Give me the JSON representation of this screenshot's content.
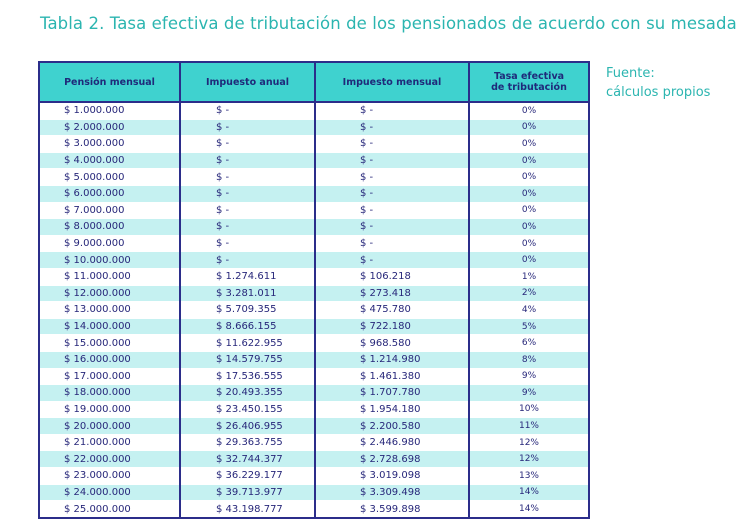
{
  "title": "Tabla 2. Tasa efectiva de tributación de los pensionados de acuerdo con su mesada",
  "source": [
    "Fuente:",
    "cálculos propios"
  ],
  "headers": {
    "pension": "Pensión mensual",
    "anual": "Impuesto anual",
    "mensual": "Impuesto mensual",
    "tasa_line1": "Tasa efectiva",
    "tasa_line2": "de tributación"
  },
  "rows": [
    {
      "pension": "$ 1.000.000",
      "anual": "$ -",
      "mensual": "$ -",
      "tasa": "0%"
    },
    {
      "pension": "$ 2.000.000",
      "anual": "$ -",
      "mensual": "$ -",
      "tasa": "0%"
    },
    {
      "pension": "$ 3.000.000",
      "anual": "$ -",
      "mensual": "$ -",
      "tasa": "0%"
    },
    {
      "pension": "$ 4.000.000",
      "anual": "$ -",
      "mensual": "$ -",
      "tasa": "0%"
    },
    {
      "pension": "$ 5.000.000",
      "anual": "$ -",
      "mensual": "$ -",
      "tasa": "0%"
    },
    {
      "pension": "$ 6.000.000",
      "anual": "$ -",
      "mensual": "$ -",
      "tasa": "0%"
    },
    {
      "pension": "$ 7.000.000",
      "anual": "$ -",
      "mensual": "$ -",
      "tasa": "0%"
    },
    {
      "pension": "$ 8.000.000",
      "anual": "$ -",
      "mensual": "$ -",
      "tasa": "0%"
    },
    {
      "pension": "$ 9.000.000",
      "anual": "$ -",
      "mensual": "$ -",
      "tasa": "0%"
    },
    {
      "pension": "$ 10.000.000",
      "anual": "$ -",
      "mensual": "$ -",
      "tasa": "0%"
    },
    {
      "pension": "$ 11.000.000",
      "anual": "$ 1.274.611",
      "mensual": "$ 106.218",
      "tasa": "1%"
    },
    {
      "pension": "$ 12.000.000",
      "anual": "$ 3.281.011",
      "mensual": "$ 273.418",
      "tasa": "2%"
    },
    {
      "pension": "$ 13.000.000",
      "anual": "$ 5.709.355",
      "mensual": "$ 475.780",
      "tasa": "4%"
    },
    {
      "pension": "$ 14.000.000",
      "anual": "$ 8.666.155",
      "mensual": "$ 722.180",
      "tasa": "5%"
    },
    {
      "pension": "$ 15.000.000",
      "anual": "$ 11.622.955",
      "mensual": "$ 968.580",
      "tasa": "6%"
    },
    {
      "pension": "$ 16.000.000",
      "anual": "$ 14.579.755",
      "mensual": "$ 1.214.980",
      "tasa": "8%"
    },
    {
      "pension": "$ 17.000.000",
      "anual": "$ 17.536.555",
      "mensual": "$ 1.461.380",
      "tasa": "9%"
    },
    {
      "pension": "$ 18.000.000",
      "anual": "$ 20.493.355",
      "mensual": "$ 1.707.780",
      "tasa": "9%"
    },
    {
      "pension": "$ 19.000.000",
      "anual": "$ 23.450.155",
      "mensual": "$ 1.954.180",
      "tasa": "10%"
    },
    {
      "pension": "$ 20.000.000",
      "anual": "$ 26.406.955",
      "mensual": "$ 2.200.580",
      "tasa": "11%"
    },
    {
      "pension": "$ 21.000.000",
      "anual": "$ 29.363.755",
      "mensual": "$ 2.446.980",
      "tasa": "12%"
    },
    {
      "pension": "$ 22.000.000",
      "anual": "$ 32.744.377",
      "mensual": "$ 2.728.698",
      "tasa": "12%"
    },
    {
      "pension": "$ 23.000.000",
      "anual": "$ 36.229.177",
      "mensual": "$ 3.019.098",
      "tasa": "13%"
    },
    {
      "pension": "$ 24.000.000",
      "anual": "$ 39.713.977",
      "mensual": "$ 3.309.498",
      "tasa": "14%"
    },
    {
      "pension": "$ 25.000.000",
      "anual": "$ 43.198.777",
      "mensual": "$ 3.599.898",
      "tasa": "14%"
    }
  ],
  "colors": {
    "title": "#2bb5b0",
    "header_bg": "#3fd2cf",
    "stripe": "#c5f1f1",
    "border": "#2b2d8a",
    "text": "#27277a"
  }
}
